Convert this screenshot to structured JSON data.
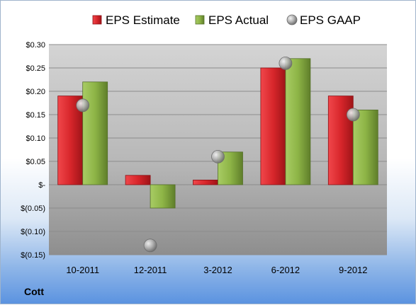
{
  "company_label": "Cott",
  "chart_data": {
    "type": "bar",
    "categories": [
      "10-2011",
      "12-2011",
      "3-2012",
      "6-2012",
      "9-2012"
    ],
    "series": [
      {
        "name": "EPS Estimate",
        "kind": "bar",
        "color": "#d8262b",
        "values": [
          0.19,
          0.02,
          0.01,
          0.25,
          0.19
        ]
      },
      {
        "name": "EPS Actual",
        "kind": "bar",
        "color": "#8db446",
        "values": [
          0.22,
          -0.05,
          0.07,
          0.27,
          0.16
        ]
      },
      {
        "name": "EPS GAAP",
        "kind": "marker",
        "color": "#a8a8a8",
        "values": [
          0.17,
          -0.13,
          0.06,
          0.26,
          0.15
        ]
      }
    ],
    "ylim": [
      -0.15,
      0.3
    ],
    "yticks": [
      {
        "value": 0.3,
        "label": "$0.30"
      },
      {
        "value": 0.25,
        "label": "$0.25"
      },
      {
        "value": 0.2,
        "label": "$0.20"
      },
      {
        "value": 0.15,
        "label": "$0.15"
      },
      {
        "value": 0.1,
        "label": "$0.10"
      },
      {
        "value": 0.05,
        "label": "$0.05"
      },
      {
        "value": 0.0,
        "label": "$-"
      },
      {
        "value": -0.05,
        "label": "$(0.05)"
      },
      {
        "value": -0.1,
        "label": "$(0.10)"
      },
      {
        "value": -0.15,
        "label": "$(0.15)"
      }
    ],
    "legend_position": "top",
    "grid": true
  }
}
